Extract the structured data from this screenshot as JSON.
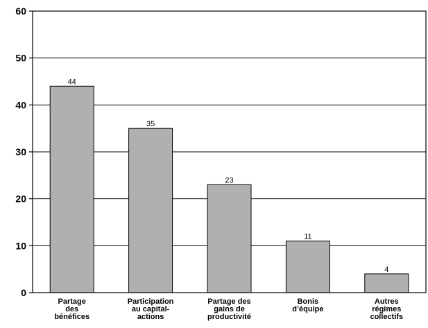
{
  "chart_data": {
    "type": "bar",
    "categories": [
      [
        "Partage",
        "des",
        "bénéfices"
      ],
      [
        "Participation",
        "au capital-",
        "actions"
      ],
      [
        "Partage des",
        "gains de",
        "productivité"
      ],
      [
        "Bonis",
        "d’équipe"
      ],
      [
        "Autres",
        "régimes",
        "collectifs"
      ]
    ],
    "values": [
      44,
      35,
      23,
      11,
      4
    ],
    "ylim": [
      0,
      60
    ],
    "yticks": [
      0,
      10,
      20,
      30,
      40,
      50,
      60
    ],
    "grid": true,
    "bar_color": "#b0b0b0",
    "title": "",
    "xlabel": "",
    "ylabel": ""
  }
}
